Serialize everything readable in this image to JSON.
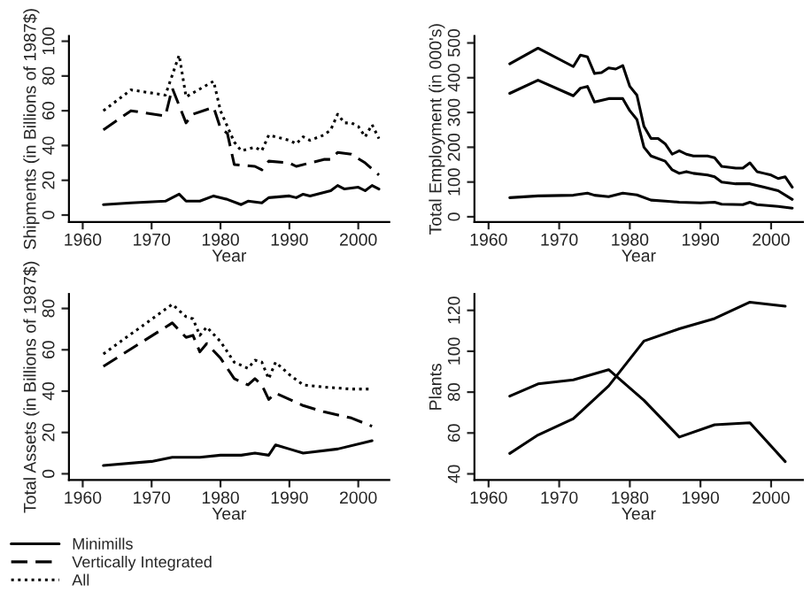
{
  "chart_data": [
    {
      "type": "line",
      "xlabel": "Year",
      "ylabel": "Shipments (in Billions of 1987$)",
      "xlim": [
        1958,
        2004.5
      ],
      "xticks": [
        1960,
        1970,
        1980,
        1990,
        2000
      ],
      "ylim": [
        -4,
        103
      ],
      "yticks": [
        0,
        20,
        40,
        60,
        80,
        100
      ],
      "legend": "bottom left",
      "grid": false,
      "series": [
        {
          "name": "Minimills",
          "color": "#000000",
          "line_style": "solid",
          "x": [
            1963,
            1967,
            1972,
            1974,
            1975,
            1977,
            1979,
            1981,
            1983,
            1984,
            1986,
            1987,
            1990,
            1991,
            1992,
            1993,
            1995,
            1996,
            1997,
            1998,
            2000,
            2001,
            2002,
            2003
          ],
          "values": [
            6,
            7,
            8,
            12,
            8,
            8,
            11,
            9,
            6,
            8,
            7,
            10,
            11,
            10,
            12,
            11,
            13,
            14,
            17,
            15,
            16,
            14,
            17,
            15
          ]
        },
        {
          "name": "Vertically Integrated",
          "color": "#000000",
          "line_style": "dashed",
          "x": [
            1963,
            1967,
            1972,
            1973,
            1975,
            1976,
            1979,
            1980,
            1981,
            1982,
            1985,
            1986,
            1987,
            1990,
            1991,
            1993,
            1995,
            1996,
            1997,
            1999,
            2001,
            2003
          ],
          "values": [
            49,
            60,
            57,
            73,
            53,
            58,
            62,
            50,
            47,
            29,
            28,
            26,
            31,
            30,
            28,
            30,
            32,
            32,
            36,
            35,
            30,
            23
          ]
        },
        {
          "name": "All",
          "color": "#000000",
          "line_style": "dotted",
          "x": [
            1963,
            1967,
            1972,
            1974,
            1975,
            1979,
            1980,
            1982,
            1983,
            1985,
            1986,
            1987,
            1989,
            1990,
            1991,
            1992,
            1993,
            1995,
            1996,
            1997,
            1998,
            1999,
            2000,
            2001,
            2002,
            2003
          ],
          "values": [
            60,
            72,
            69,
            92,
            68,
            77,
            60,
            42,
            37,
            39,
            37,
            46,
            44,
            43,
            41,
            45,
            43,
            46,
            49,
            58,
            53,
            53,
            51,
            45,
            52,
            44
          ]
        }
      ]
    },
    {
      "type": "line",
      "xlabel": "Year",
      "ylabel": "Total Employment (in 000's)",
      "xlim": [
        1958,
        2004.5
      ],
      "xticks": [
        1960,
        1970,
        1980,
        1990,
        2000
      ],
      "ylim": [
        -15,
        520
      ],
      "yticks": [
        0,
        100,
        200,
        300,
        400,
        500
      ],
      "grid": false,
      "series": [
        {
          "color": "#000000",
          "line_style": "solid",
          "x": [
            1963,
            1967,
            1972,
            1973,
            1974,
            1975,
            1976,
            1977,
            1978,
            1979,
            1980,
            1981,
            1982,
            1983,
            1984,
            1985,
            1986,
            1987,
            1988,
            1989,
            1991,
            1992,
            1993,
            1995,
            1996,
            1997,
            1998,
            1999,
            2000,
            2001,
            2002,
            2003
          ],
          "values": [
            440,
            485,
            432,
            465,
            460,
            412,
            415,
            428,
            425,
            435,
            375,
            350,
            260,
            225,
            225,
            210,
            180,
            190,
            180,
            175,
            175,
            170,
            145,
            140,
            140,
            155,
            130,
            125,
            120,
            110,
            115,
            85
          ]
        },
        {
          "color": "#000000",
          "line_style": "solid",
          "x": [
            1963,
            1967,
            1972,
            1973,
            1974,
            1975,
            1977,
            1979,
            1980,
            1981,
            1982,
            1983,
            1985,
            1986,
            1987,
            1988,
            1989,
            1991,
            1992,
            1993,
            1995,
            1997,
            1999,
            2001,
            2003
          ],
          "values": [
            355,
            393,
            348,
            370,
            375,
            330,
            340,
            340,
            305,
            280,
            200,
            175,
            160,
            135,
            125,
            130,
            125,
            120,
            115,
            100,
            95,
            95,
            85,
            75,
            50
          ]
        },
        {
          "color": "#000000",
          "line_style": "solid",
          "x": [
            1963,
            1967,
            1972,
            1974,
            1975,
            1977,
            1979,
            1981,
            1983,
            1985,
            1987,
            1990,
            1992,
            1993,
            1996,
            1997,
            1998,
            2001,
            2003
          ],
          "values": [
            55,
            60,
            62,
            68,
            62,
            58,
            68,
            63,
            48,
            45,
            42,
            40,
            42,
            36,
            35,
            42,
            35,
            30,
            25
          ]
        }
      ]
    },
    {
      "type": "line",
      "xlabel": "Year",
      "ylabel": "Total Assets (in Billions of 1987$)",
      "xlim": [
        1958,
        2004.5
      ],
      "xticks": [
        1960,
        1970,
        1980,
        1990,
        2000
      ],
      "ylim": [
        -3,
        87
      ],
      "yticks": [
        0,
        20,
        40,
        60,
        80
      ],
      "grid": false,
      "series": [
        {
          "color": "#000000",
          "line_style": "solid",
          "x": [
            1963,
            1970,
            1973,
            1977,
            1980,
            1983,
            1985,
            1987,
            1988,
            1990,
            1992,
            1997,
            2002
          ],
          "values": [
            4,
            6,
            8,
            8,
            9,
            9,
            10,
            9,
            14,
            12,
            10,
            12,
            16
          ]
        },
        {
          "color": "#000000",
          "line_style": "dashed",
          "x": [
            1963,
            1973,
            1975,
            1976,
            1977,
            1978,
            1980,
            1982,
            1984,
            1985,
            1986,
            1987,
            1988,
            1992,
            1995,
            1999,
            2002
          ],
          "values": [
            52,
            73,
            66,
            67,
            59,
            63,
            56,
            46,
            43,
            46,
            43,
            36,
            39,
            33,
            30,
            27,
            23
          ]
        },
        {
          "color": "#000000",
          "line_style": "dotted",
          "x": [
            1963,
            1973,
            1975,
            1976,
            1977,
            1978,
            1980,
            1982,
            1984,
            1985,
            1986,
            1987,
            1988,
            1990,
            1992,
            1995,
            1999,
            2002
          ],
          "values": [
            58,
            82,
            76,
            75,
            67,
            71,
            64,
            54,
            51,
            55,
            54,
            46,
            54,
            48,
            43,
            42,
            41,
            41
          ]
        }
      ]
    },
    {
      "type": "line",
      "xlabel": "Year",
      "ylabel": "Plants",
      "xlim": [
        1958,
        2004.5
      ],
      "xticks": [
        1960,
        1970,
        1980,
        1990,
        2000
      ],
      "ylim": [
        37,
        128
      ],
      "yticks": [
        40,
        60,
        80,
        100,
        120
      ],
      "grid": false,
      "series": [
        {
          "color": "#000000",
          "line_style": "solid",
          "x": [
            1963,
            1967,
            1972,
            1977,
            1982,
            1987,
            1992,
            1997,
            2002
          ],
          "values": [
            78,
            84,
            86,
            91,
            76,
            58,
            64,
            65,
            46
          ]
        },
        {
          "color": "#000000",
          "line_style": "solid",
          "x": [
            1963,
            1967,
            1972,
            1977,
            1982,
            1987,
            1992,
            1997,
            2002
          ],
          "values": [
            50,
            59,
            67,
            83,
            105,
            111,
            116,
            124,
            122
          ]
        }
      ]
    }
  ]
}
